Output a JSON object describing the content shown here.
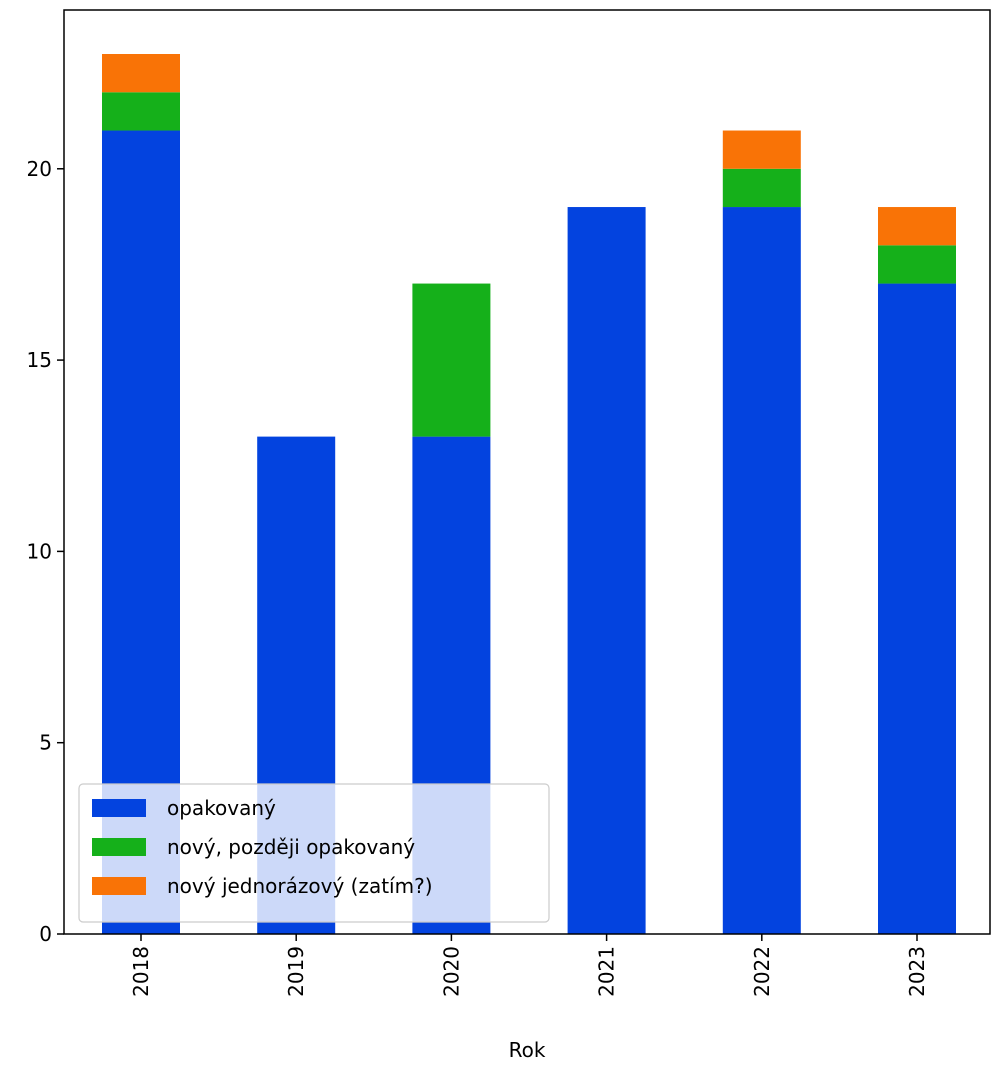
{
  "chart_data": {
    "type": "bar",
    "stacked": true,
    "categories": [
      "2018",
      "2019",
      "2020",
      "2021",
      "2022",
      "2023"
    ],
    "series": [
      {
        "name": "opakovaný",
        "color": "#0343df",
        "values": [
          21,
          13,
          13,
          19,
          19,
          17
        ]
      },
      {
        "name": "nový, později opakovaný",
        "color": "#15b01a",
        "values": [
          1,
          0,
          4,
          0,
          1,
          1
        ]
      },
      {
        "name": "nový jednorázový (zatím?)",
        "color": "#f97306",
        "values": [
          1,
          0,
          0,
          0,
          1,
          1
        ]
      }
    ],
    "xlabel": "Rok",
    "ylabel": "",
    "ylim": [
      0,
      24.15
    ],
    "yticks": [
      0,
      5,
      10,
      15,
      20
    ],
    "xtick_rotation": 90,
    "legend_position": "lower-left",
    "grid": false
  }
}
